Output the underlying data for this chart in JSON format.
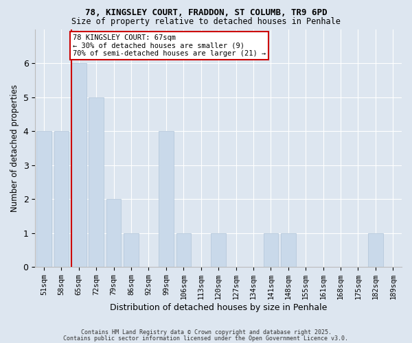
{
  "title1": "78, KINGSLEY COURT, FRADDON, ST COLUMB, TR9 6PD",
  "title2": "Size of property relative to detached houses in Penhale",
  "xlabel": "Distribution of detached houses by size in Penhale",
  "ylabel": "Number of detached properties",
  "categories": [
    "51sqm",
    "58sqm",
    "65sqm",
    "72sqm",
    "79sqm",
    "86sqm",
    "92sqm",
    "99sqm",
    "106sqm",
    "113sqm",
    "120sqm",
    "127sqm",
    "134sqm",
    "141sqm",
    "148sqm",
    "155sqm",
    "161sqm",
    "168sqm",
    "175sqm",
    "182sqm",
    "189sqm"
  ],
  "values": [
    4,
    4,
    6,
    5,
    2,
    1,
    0,
    4,
    1,
    0,
    1,
    0,
    0,
    1,
    1,
    0,
    0,
    0,
    0,
    1,
    0
  ],
  "bar_color": "#c9d9ea",
  "bar_edge_color": "#b0c4d8",
  "vline_color": "#cc0000",
  "annotation_text": "78 KINGSLEY COURT: 67sqm\n← 30% of detached houses are smaller (9)\n70% of semi-detached houses are larger (21) →",
  "annotation_box_color": "#ffffff",
  "annotation_box_edge": "#cc0000",
  "ylim": [
    0,
    7
  ],
  "yticks": [
    0,
    1,
    2,
    3,
    4,
    5,
    6
  ],
  "background_color": "#dde6f0",
  "plot_bg_color": "#dde6f0",
  "grid_color": "#ffffff",
  "footer1": "Contains HM Land Registry data © Crown copyright and database right 2025.",
  "footer2": "Contains public sector information licensed under the Open Government Licence v3.0."
}
